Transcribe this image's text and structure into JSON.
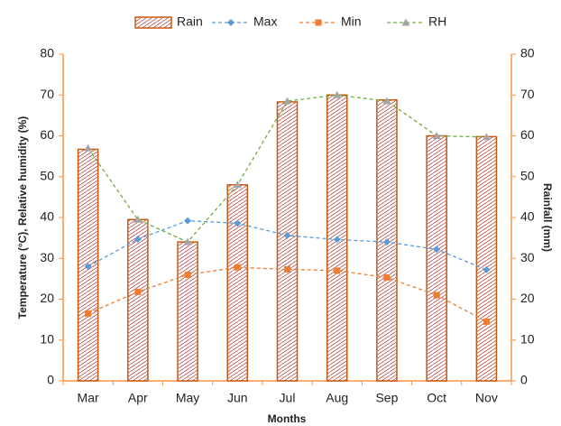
{
  "chart_data": {
    "type": "combo",
    "categories": [
      "Mar",
      "Apr",
      "May",
      "Jun",
      "Jul",
      "Aug",
      "Sep",
      "Oct",
      "Nov"
    ],
    "series": [
      {
        "name": "Rain",
        "type": "bar",
        "axis": "y2",
        "color": "#c55a11",
        "values": [
          56.7,
          39.5,
          34,
          48,
          68.3,
          70,
          68.8,
          60,
          59.8
        ]
      },
      {
        "name": "Max",
        "type": "line",
        "marker": "diamond",
        "color": "#5b9bd5",
        "marker_color": "#5b9bd5",
        "values": [
          28,
          34.7,
          39.2,
          38.6,
          35.6,
          34.6,
          34,
          32.2,
          27.2
        ]
      },
      {
        "name": "Min",
        "type": "line",
        "marker": "square",
        "color": "#ed7d31",
        "marker_color": "#ed7d31",
        "values": [
          16.5,
          21.8,
          26,
          27.8,
          27.3,
          27,
          25.3,
          21,
          14.5
        ]
      },
      {
        "name": "RH",
        "type": "line",
        "marker": "triangle",
        "color": "#70ad47",
        "marker_color": "#a5a5a5",
        "values": [
          57,
          39.5,
          34,
          48,
          68.5,
          70,
          68.5,
          60,
          59.7
        ]
      }
    ],
    "ylim": [
      0,
      80
    ],
    "yticks": [
      0,
      10,
      20,
      30,
      40,
      50,
      60,
      70,
      80
    ],
    "y2lim": [
      0,
      80
    ],
    "y2ticks": [
      0,
      10,
      20,
      30,
      40,
      50,
      60,
      70,
      80
    ],
    "ylabel": "Temperature (°C), Relative humidity (%)",
    "y2label": "Rainfall (mm)",
    "xlabel": "Months",
    "axis_color": "#f79646",
    "legend": "top"
  }
}
